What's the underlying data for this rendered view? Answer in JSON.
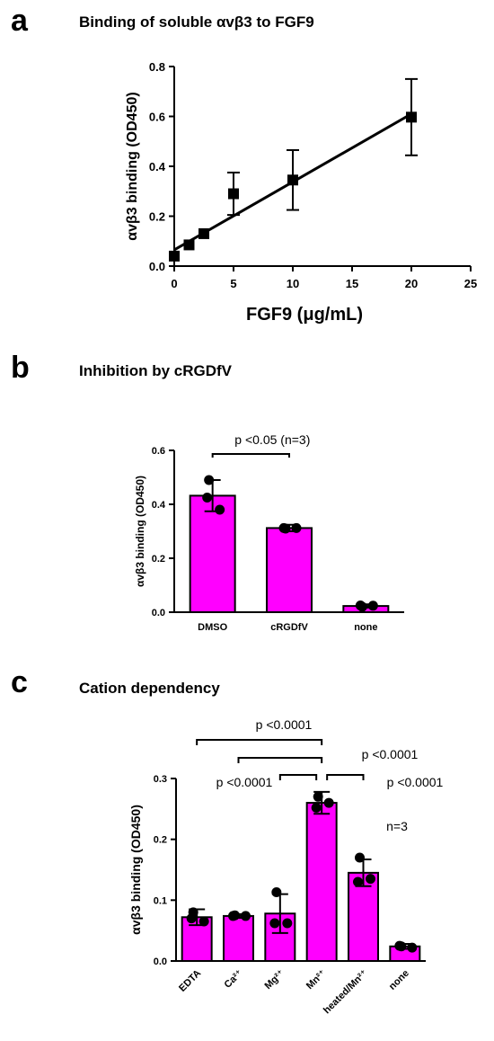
{
  "panels": {
    "a": {
      "letter": "a",
      "title": "Binding of soluble αvβ3 to FGF9"
    },
    "b": {
      "letter": "b",
      "title": "Inhibition by cRGDfV"
    },
    "c": {
      "letter": "c",
      "title": "Cation dependency"
    }
  },
  "chart_data": [
    {
      "type": "scatter",
      "title": "Binding of soluble αvβ3 to FGF9",
      "xlabel": "FGF9 (μg/mL)",
      "ylabel": "αvβ3 binding (OD450)",
      "xlim": [
        0,
        25
      ],
      "ylim": [
        0,
        0.8
      ],
      "xticks": [
        "0",
        "5",
        "10",
        "15",
        "20",
        "25"
      ],
      "yticks": [
        "0.0",
        "0.2",
        "0.4",
        "0.6",
        "0.8"
      ],
      "points": [
        {
          "x": 0,
          "y": 0.04,
          "err": 0.0
        },
        {
          "x": 1.25,
          "y": 0.085,
          "err": 0.0
        },
        {
          "x": 2.5,
          "y": 0.13,
          "err": 0.0
        },
        {
          "x": 5,
          "y": 0.29,
          "err": 0.085
        },
        {
          "x": 10,
          "y": 0.345,
          "err": 0.12
        },
        {
          "x": 20,
          "y": 0.597,
          "err": 0.153
        }
      ],
      "fit_line": {
        "x": [
          0,
          20
        ],
        "y": [
          0.065,
          0.61
        ]
      },
      "marker_color": "#000000"
    },
    {
      "type": "bar",
      "title": "Inhibition by cRGDfV",
      "ylabel": "αvβ3 binding (OD450)",
      "ylim": [
        0,
        0.6
      ],
      "yticks": [
        "0.0",
        "0.2",
        "0.4",
        "0.6"
      ],
      "categories": [
        "DMSO",
        "cRGDfV",
        "none"
      ],
      "values": [
        0.432,
        0.312,
        0.023
      ],
      "errors": [
        0.058,
        0.012,
        0.006
      ],
      "points": [
        [
          0.49,
          0.425,
          0.38
        ],
        [
          0.31,
          0.312,
          0.312
        ],
        [
          0.02,
          0.025,
          0.024
        ]
      ],
      "bar_color": "#ff00ff",
      "annotations": [
        {
          "text": "p <0.05 (n=3)",
          "from": 0,
          "to": 1
        }
      ]
    },
    {
      "type": "bar",
      "title": "Cation dependency",
      "ylabel": "αvβ3 binding (OD450)",
      "ylim": [
        0,
        0.3
      ],
      "yticks": [
        "0.0",
        "0.1",
        "0.2",
        "0.3"
      ],
      "categories": [
        "EDTA",
        "Ca²⁺",
        "Mg²⁺",
        "Mn²⁺",
        "heated/Mn²⁺",
        "none"
      ],
      "values": [
        0.072,
        0.074,
        0.078,
        0.26,
        0.145,
        0.024
      ],
      "errors": [
        0.013,
        0.003,
        0.032,
        0.018,
        0.022,
        0.004
      ],
      "points": [
        [
          0.08,
          0.07,
          0.065
        ],
        [
          0.075,
          0.074,
          0.074
        ],
        [
          0.113,
          0.062,
          0.062
        ],
        [
          0.27,
          0.252,
          0.26
        ],
        [
          0.17,
          0.13,
          0.135
        ],
        [
          0.024,
          0.025,
          0.022
        ]
      ],
      "bar_color": "#ff00ff",
      "annotations": [
        {
          "text": "p <0.0001",
          "type": "bracket",
          "from": 0,
          "to": 3
        },
        {
          "text": "",
          "type": "bracket",
          "from": 1,
          "to": 3
        },
        {
          "text": "p <0.0001",
          "type": "bracket",
          "from": 2,
          "to": 3
        },
        {
          "text": "p <0.0001",
          "type": "bracket",
          "from": 3,
          "to": 4
        },
        {
          "text": "p <0.0001",
          "type": "label",
          "near": 4
        }
      ],
      "note": "n=3"
    }
  ]
}
